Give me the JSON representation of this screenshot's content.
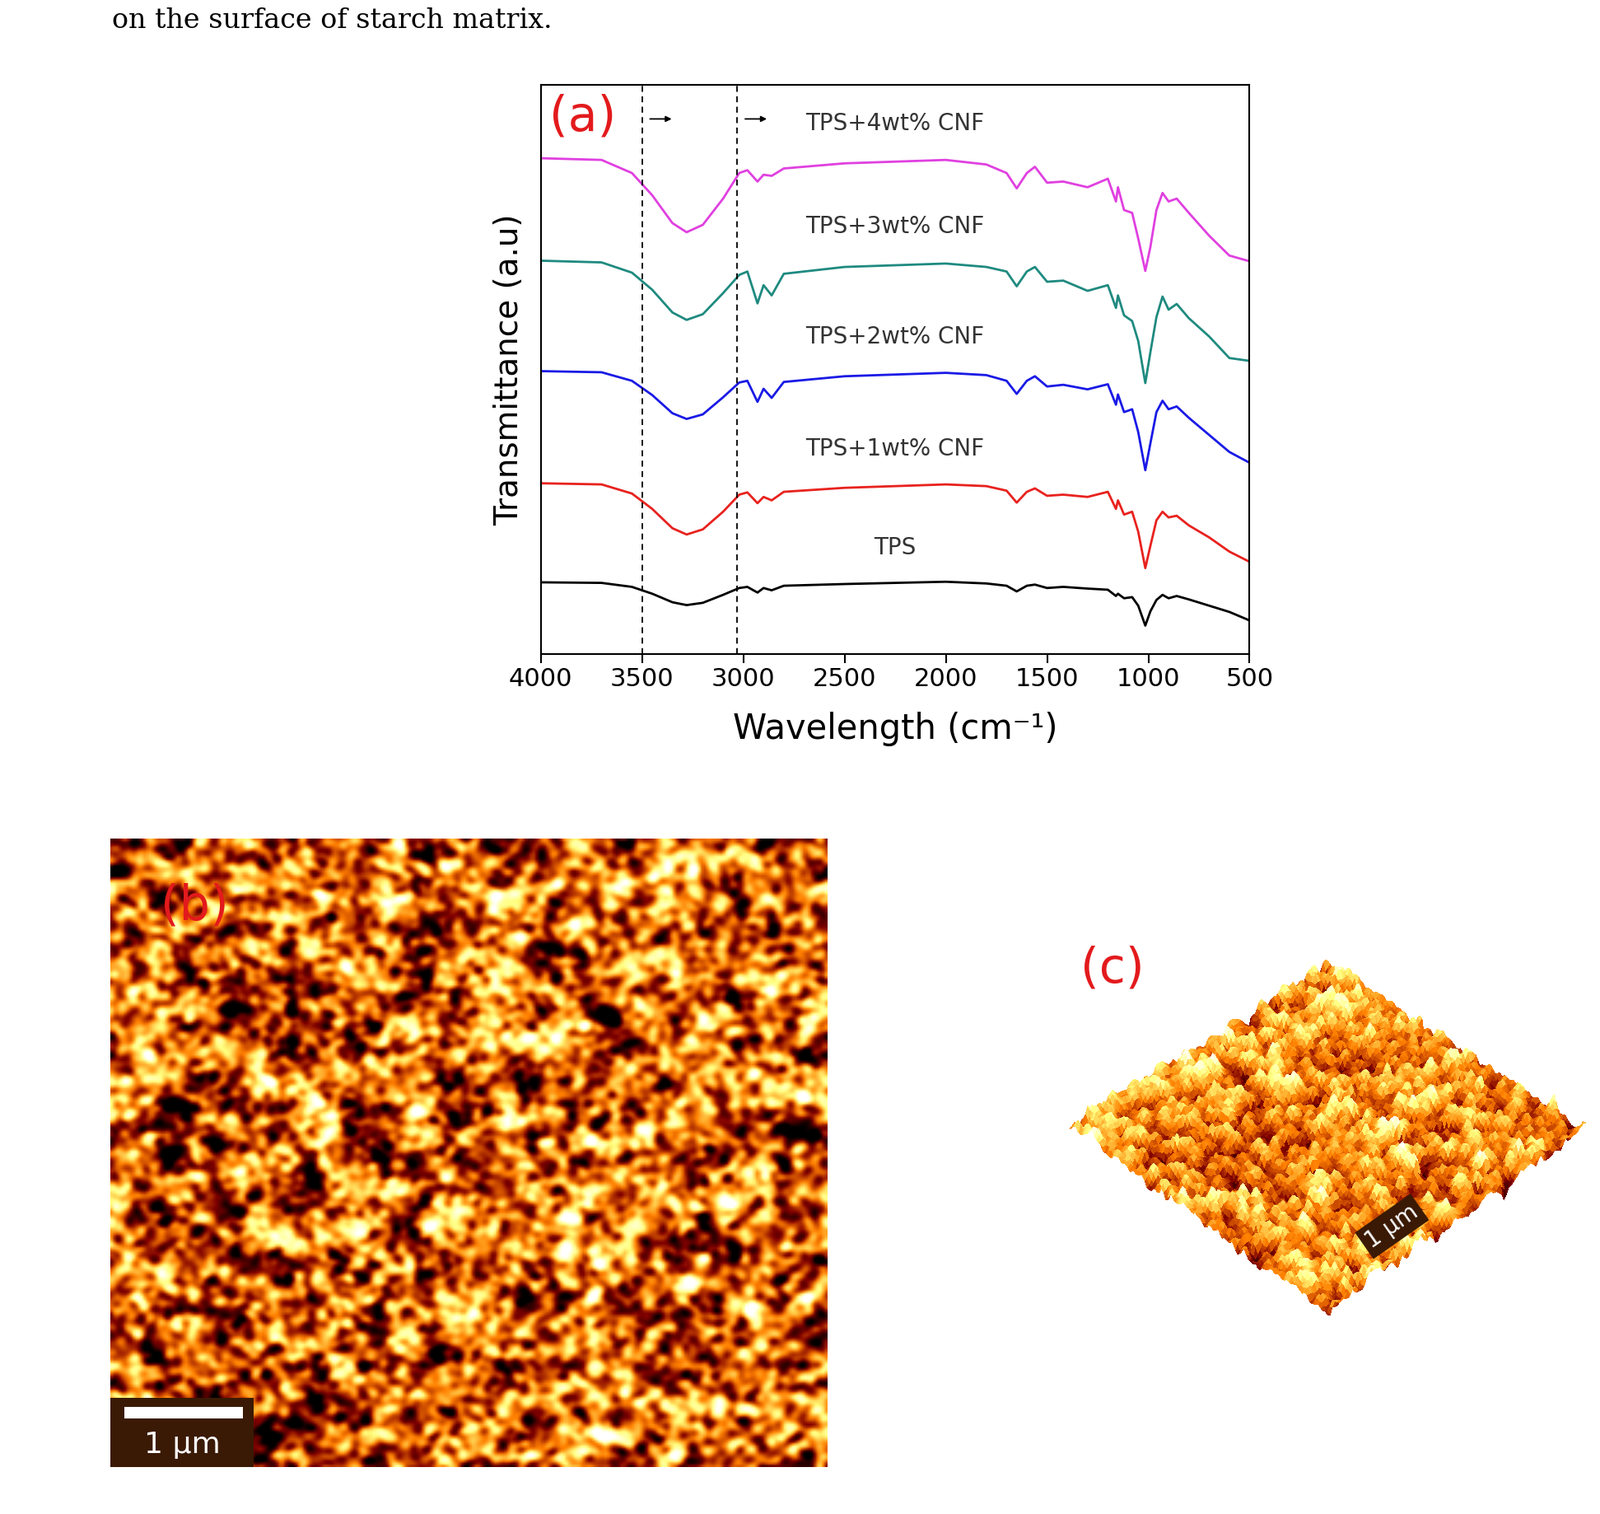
{
  "header_text": "on the surface of starch matrix.",
  "chart_data": {
    "type": "line",
    "panel_label": "(a)",
    "x_label": "Wavelength (cm⁻¹)",
    "y_label": "Transmittance (a.u)",
    "xlim": [
      4000,
      500
    ],
    "xticks": [
      4000,
      3500,
      3000,
      2500,
      2000,
      1500,
      1000,
      500
    ],
    "ylim": [
      0,
      100
    ],
    "tick_labels": "x",
    "reference_lines": [
      3500,
      3030
    ],
    "x": [
      4000,
      3700,
      3550,
      3450,
      3350,
      3280,
      3200,
      3100,
      3020,
      2980,
      2930,
      2900,
      2860,
      2800,
      2500,
      2000,
      1800,
      1700,
      1650,
      1600,
      1560,
      1500,
      1420,
      1300,
      1200,
      1160,
      1150,
      1120,
      1080,
      1050,
      1015,
      990,
      960,
      930,
      900,
      860,
      800,
      700,
      600,
      500
    ],
    "series": [
      {
        "name": "TPS",
        "color": "#000000",
        "values": [
          12.6,
          12.5,
          11.8,
          10.6,
          9.1,
          8.6,
          9.0,
          10.4,
          11.6,
          11.8,
          10.8,
          11.6,
          11.2,
          12.0,
          12.3,
          12.7,
          12.4,
          12.0,
          11.0,
          12.0,
          12.2,
          11.6,
          11.8,
          11.5,
          11.3,
          10.2,
          10.6,
          9.8,
          10.0,
          8.5,
          5.0,
          7.5,
          9.5,
          10.4,
          9.8,
          10.2,
          9.6,
          8.5,
          7.4,
          5.9
        ]
      },
      {
        "name": "TPS+1wt% CNF",
        "color": "#e8221e",
        "values": [
          30.0,
          29.8,
          28.2,
          25.5,
          22.1,
          21.0,
          21.9,
          25.0,
          28.0,
          28.4,
          26.5,
          27.6,
          27.0,
          28.5,
          29.2,
          29.8,
          29.5,
          28.7,
          26.6,
          28.5,
          29.1,
          27.8,
          28.0,
          27.6,
          28.5,
          25.5,
          27.0,
          24.5,
          25.0,
          21.5,
          15.1,
          19.0,
          23.5,
          25.0,
          24.0,
          24.3,
          22.6,
          20.5,
          18.0,
          16.2
        ]
      },
      {
        "name": "TPS+2wt% CNF",
        "color": "#1a1ae6",
        "values": [
          49.7,
          49.5,
          48.0,
          45.5,
          42.3,
          41.3,
          42.1,
          45.1,
          47.7,
          48.0,
          44.3,
          46.6,
          45.0,
          47.8,
          48.8,
          49.4,
          49.0,
          48.0,
          45.7,
          48.0,
          48.8,
          47.0,
          47.3,
          46.5,
          47.4,
          43.8,
          45.6,
          42.5,
          43.0,
          39.0,
          32.3,
          37.0,
          42.5,
          44.5,
          43.0,
          43.5,
          41.5,
          38.5,
          35.5,
          33.6
        ]
      },
      {
        "name": "TPS+3wt% CNF",
        "color": "#1f8a80",
        "values": [
          69.1,
          68.8,
          67.0,
          64.0,
          60.0,
          58.7,
          59.7,
          63.4,
          66.6,
          67.2,
          61.6,
          64.8,
          63.0,
          66.8,
          68.0,
          68.6,
          68.0,
          67.2,
          64.6,
          67.2,
          68.0,
          65.4,
          65.6,
          63.8,
          64.8,
          60.8,
          63.0,
          59.5,
          58.5,
          55.0,
          47.6,
          53.0,
          59.2,
          62.8,
          60.5,
          61.5,
          59.0,
          55.8,
          52.0,
          51.5
        ]
      },
      {
        "name": "TPS+4wt% CNF",
        "color": "#e040e0",
        "values": [
          87.1,
          86.8,
          84.5,
          80.6,
          75.7,
          74.1,
          75.4,
          80.0,
          84.5,
          85.0,
          83.0,
          84.2,
          84.0,
          85.3,
          86.2,
          86.8,
          86.0,
          84.5,
          81.8,
          84.5,
          85.6,
          82.8,
          83.0,
          82.0,
          83.5,
          79.5,
          82.0,
          78.0,
          77.5,
          73.0,
          67.3,
          71.5,
          78.0,
          81.0,
          79.5,
          80.0,
          77.5,
          73.5,
          70.0,
          69.0
        ]
      }
    ]
  },
  "images": [
    {
      "label": "(b)",
      "scale_bar": "1 µm"
    },
    {
      "label": "(c)",
      "scale_bar": "1 µm"
    }
  ]
}
